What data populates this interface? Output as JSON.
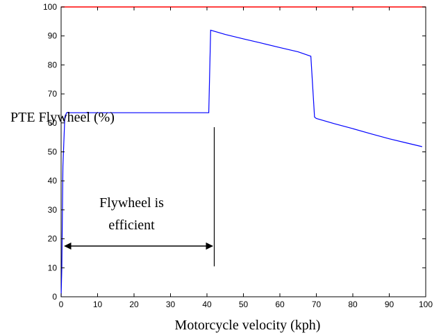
{
  "chart_data": {
    "type": "line",
    "title": "",
    "xlabel": "Motorcycle velocity (kph)",
    "ylabel": "PTE Flywheel (%)",
    "xlim": [
      0,
      100
    ],
    "ylim": [
      0,
      100
    ],
    "xticks": [
      0,
      10,
      20,
      30,
      40,
      50,
      60,
      70,
      80,
      90,
      100
    ],
    "yticks": [
      0,
      10,
      20,
      30,
      40,
      50,
      60,
      70,
      80,
      90,
      100
    ],
    "grid": false,
    "legend": "none",
    "series": [
      {
        "color": "#0000ff",
        "x": [
          0,
          0.2,
          0.5,
          1,
          1.5,
          3,
          10,
          20,
          30,
          40.5,
          41,
          45,
          50,
          55,
          60,
          65,
          68.5,
          69.5,
          70,
          75,
          80,
          85,
          90,
          95,
          99
        ],
        "y": [
          0,
          10,
          45,
          62,
          63.5,
          63.5,
          63.5,
          63.5,
          63.5,
          63.5,
          92,
          90.5,
          89,
          87.5,
          86,
          84.5,
          83,
          62,
          61.5,
          59.7,
          58,
          56.2,
          54.5,
          53,
          51.8
        ]
      },
      {
        "color": "#ff0000",
        "x": [
          0,
          100
        ],
        "y": [
          100,
          100
        ]
      }
    ],
    "annotations": [
      {
        "text_lines": [
          "Flywheel is",
          "efficient"
        ],
        "arrow_x": [
          1,
          41.5
        ],
        "arrow_y": 17.5
      }
    ],
    "reference_line": {
      "x": 42,
      "y_from": 10.5,
      "y_to": 58.5
    }
  }
}
